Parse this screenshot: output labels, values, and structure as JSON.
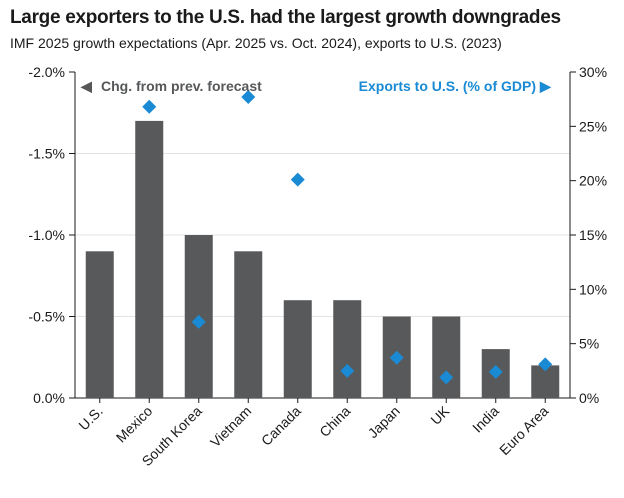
{
  "chart_data": {
    "type": "bar",
    "title": "Large exporters to the U.S. had the largest growth downgrades",
    "subtitle": "IMF 2025 growth expectations (Apr. 2025 vs. Oct. 2024), exports to U.S. (2023)",
    "categories": [
      "U.S.",
      "Mexico",
      "South Korea",
      "Vietnam",
      "Canada",
      "China",
      "Japan",
      "UK",
      "India",
      "Euro Area"
    ],
    "series": [
      {
        "name": "Chg. from prev. forecast",
        "kind": "bar",
        "axis": "left",
        "color": "#58595b",
        "values": [
          -0.9,
          -1.7,
          -1.0,
          -0.9,
          -0.6,
          -0.6,
          -0.5,
          -0.5,
          -0.3,
          -0.2
        ]
      },
      {
        "name": "Exports to U.S. (% of GDP)",
        "kind": "scatter",
        "axis": "right",
        "color": "#1a8ad4",
        "values": [
          null,
          26.8,
          7.0,
          27.7,
          20.1,
          2.5,
          3.7,
          1.9,
          2.4,
          3.1
        ]
      }
    ],
    "y_left": {
      "ticks": [
        -2.0,
        -1.5,
        -1.0,
        -0.5,
        0.0
      ],
      "tick_labels": [
        "-2.0%",
        "-1.5%",
        "-1.0%",
        "-0.5%",
        "0.0%"
      ],
      "range": [
        -2.0,
        0.0
      ],
      "inverted": true
    },
    "y_right": {
      "ticks": [
        0,
        5,
        10,
        15,
        20,
        25,
        30
      ],
      "tick_labels": [
        "0%",
        "5%",
        "10%",
        "15%",
        "20%",
        "25%",
        "30%"
      ],
      "range": [
        0,
        30
      ]
    },
    "grid": true,
    "legend_left_arrow": "◀",
    "legend_right_arrow": "▶"
  }
}
